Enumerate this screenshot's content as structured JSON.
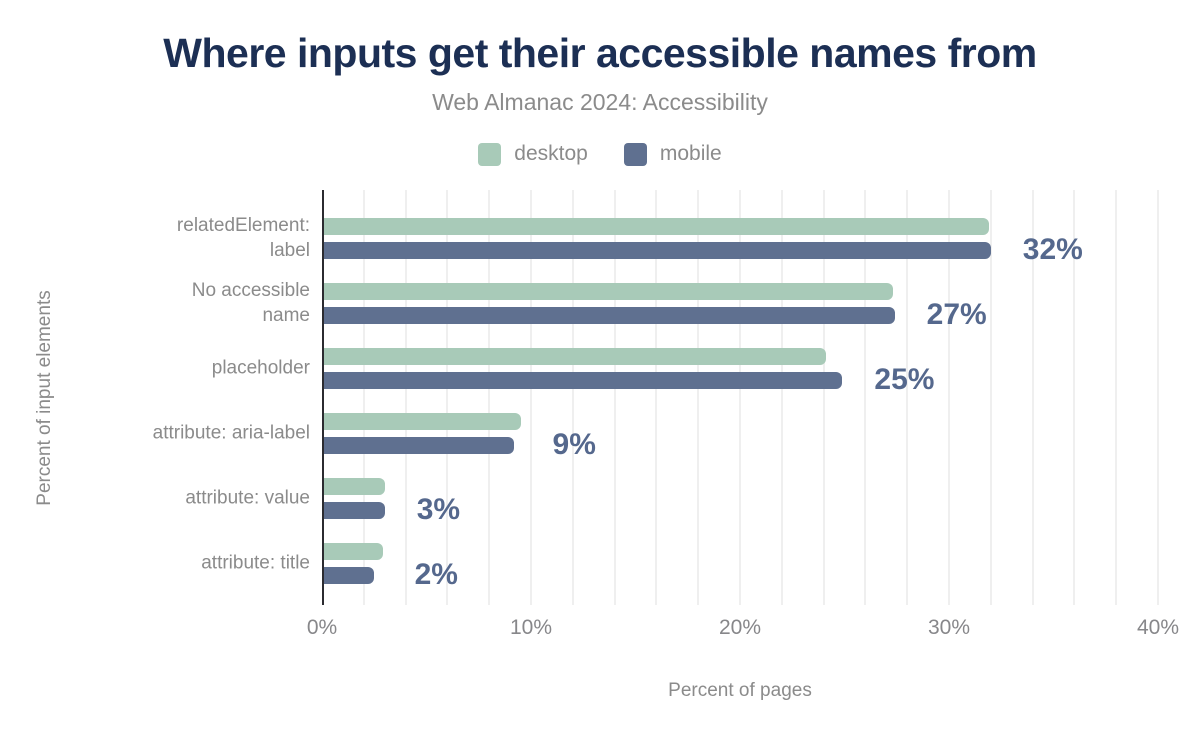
{
  "title": "Where inputs get their accessible names from",
  "subtitle": "Web Almanac 2024: Accessibility",
  "chart_data": {
    "type": "bar",
    "orientation": "horizontal",
    "title": "Where inputs get their accessible names from",
    "subtitle": "Web Almanac 2024: Accessibility",
    "xlabel": "Percent of pages",
    "ylabel": "Percent of input elements",
    "categories": [
      "relatedElement: label",
      "No accessible name",
      "placeholder",
      "attribute: aria-label",
      "attribute: value",
      "attribute: title"
    ],
    "category_display_lines": [
      [
        "relatedElement:",
        "label"
      ],
      [
        "No accessible",
        "name"
      ],
      [
        "placeholder"
      ],
      [
        "attribute: aria-label"
      ],
      [
        "attribute: value"
      ],
      [
        "attribute: title"
      ]
    ],
    "series": [
      {
        "name": "desktop",
        "color": "#a8cab8",
        "values": [
          31.9,
          27.3,
          24.1,
          9.5,
          3.0,
          2.9
        ]
      },
      {
        "name": "mobile",
        "color": "#5f7090",
        "values": [
          32.0,
          27.4,
          24.9,
          9.2,
          3.0,
          2.5
        ]
      }
    ],
    "annotations": [
      "32%",
      "27%",
      "25%",
      "9%",
      "3%",
      "2%"
    ],
    "xlim": [
      0,
      40
    ],
    "xticks": [
      0,
      10,
      20,
      30,
      40
    ],
    "xtick_labels": [
      "0%",
      "10%",
      "20%",
      "30%",
      "40%"
    ],
    "grid": true,
    "grid_step": 2,
    "legend_position": "top"
  },
  "theme": {
    "title_color": "#1c2f54",
    "label_color": "#8b8b8b",
    "axis_line_color": "#2b2b30",
    "grid_color": "#efefef",
    "annotation_color": "#55688d",
    "background": "#ffffff"
  }
}
